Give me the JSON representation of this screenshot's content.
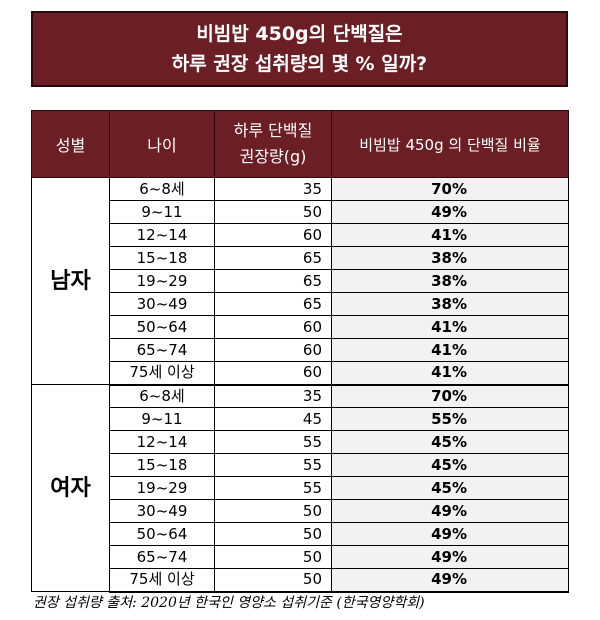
{
  "title": {
    "line1": "비빔밥 450g의 단백질은",
    "line2": "하루 권장 섭취량의 몇 % 일까?"
  },
  "headers": {
    "sex": "성별",
    "age": "나이",
    "amount_line1": "하루 단백질",
    "amount_line2": "권장량(g)",
    "pct": "비빔밥 450g 의 단백질 비율"
  },
  "colors": {
    "header_bg": "#6b1f24",
    "pct_col_bg": "#f2f2f2"
  },
  "groups": [
    {
      "label": "남자",
      "rows": [
        {
          "age": "6~8세",
          "amount": "35",
          "pct": "70%"
        },
        {
          "age": "9~11",
          "amount": "50",
          "pct": "49%"
        },
        {
          "age": "12~14",
          "amount": "60",
          "pct": "41%"
        },
        {
          "age": "15~18",
          "amount": "65",
          "pct": "38%"
        },
        {
          "age": "19~29",
          "amount": "65",
          "pct": "38%"
        },
        {
          "age": "30~49",
          "amount": "65",
          "pct": "38%"
        },
        {
          "age": "50~64",
          "amount": "60",
          "pct": "41%"
        },
        {
          "age": "65~74",
          "amount": "60",
          "pct": "41%"
        },
        {
          "age": "75세 이상",
          "amount": "60",
          "pct": "41%"
        }
      ]
    },
    {
      "label": "여자",
      "rows": [
        {
          "age": "6~8세",
          "amount": "35",
          "pct": "70%"
        },
        {
          "age": "9~11",
          "amount": "45",
          "pct": "55%"
        },
        {
          "age": "12~14",
          "amount": "55",
          "pct": "45%"
        },
        {
          "age": "15~18",
          "amount": "55",
          "pct": "45%"
        },
        {
          "age": "19~29",
          "amount": "55",
          "pct": "45%"
        },
        {
          "age": "30~49",
          "amount": "50",
          "pct": "49%"
        },
        {
          "age": "50~64",
          "amount": "50",
          "pct": "49%"
        },
        {
          "age": "65~74",
          "amount": "50",
          "pct": "49%"
        },
        {
          "age": "75세 이상",
          "amount": "50",
          "pct": "49%"
        }
      ]
    }
  ],
  "source": "권장 섭취량 출처: 2020년 한국인 영양소 섭취기준 (한국영양학회)"
}
